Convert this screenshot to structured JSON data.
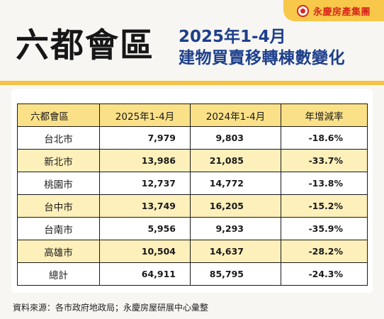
{
  "brand": {
    "name": "永慶房產集團"
  },
  "title": {
    "main": "六都會區",
    "sub_line1": "2025年1-4月",
    "sub_line2": "建物買賣移轉棟數變化"
  },
  "table": {
    "headers": [
      "六都會區",
      "2025年1-4月",
      "2024年1-4月",
      "年增減率"
    ],
    "rows": [
      {
        "city": "台北市",
        "y2025": "7,979",
        "y2024": "9,803",
        "rate": "-18.6%"
      },
      {
        "city": "新北市",
        "y2025": "13,986",
        "y2024": "21,085",
        "rate": "-33.7%"
      },
      {
        "city": "桃園市",
        "y2025": "12,737",
        "y2024": "14,772",
        "rate": "-13.8%"
      },
      {
        "city": "台中市",
        "y2025": "13,749",
        "y2024": "16,205",
        "rate": "-15.2%"
      },
      {
        "city": "台南市",
        "y2025": "5,956",
        "y2024": "9,293",
        "rate": "-35.9%"
      },
      {
        "city": "高雄市",
        "y2025": "10,504",
        "y2024": "14,637",
        "rate": "-28.2%"
      },
      {
        "city": "總計",
        "y2025": "64,911",
        "y2024": "85,795",
        "rate": "-24.3%"
      }
    ]
  },
  "source": "資料來源：各市政府地政局；永慶房屋研展中心彙整",
  "colors": {
    "accent_yellow": "#f8c84a",
    "row_highlight": "#fdf0bb",
    "header_fill": "#fae188",
    "subtitle_blue": "#1d3f8c",
    "brand_red": "#d9261c"
  }
}
